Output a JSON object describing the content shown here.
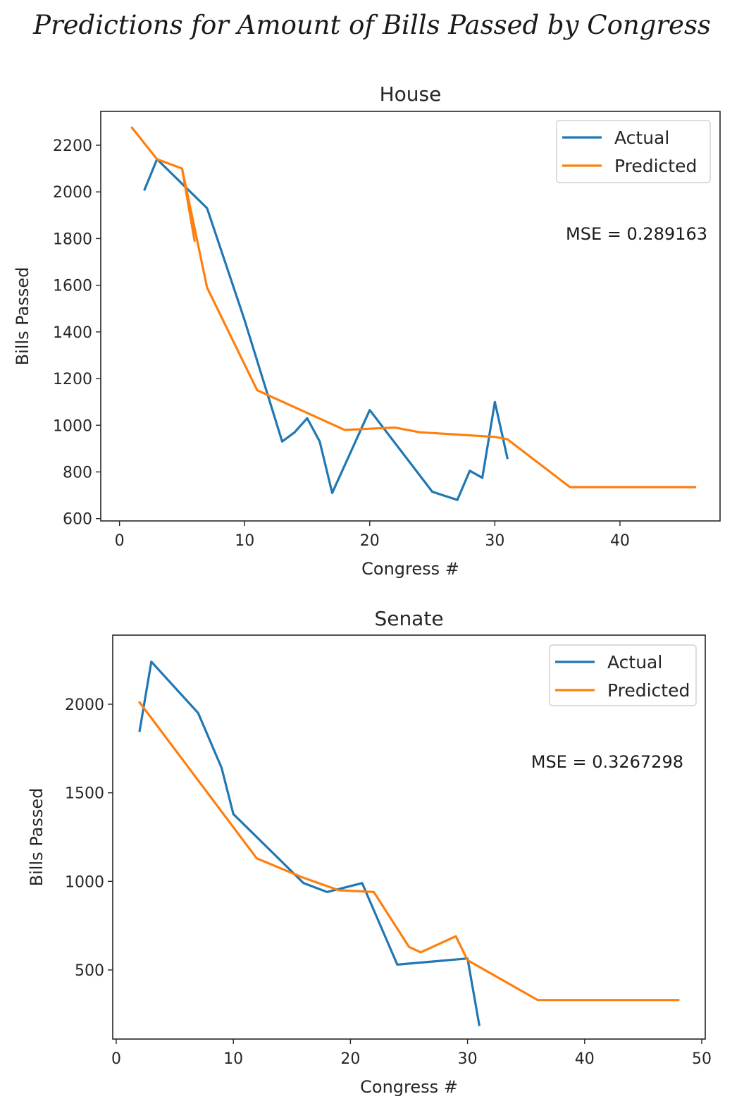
{
  "title": "Predictions for Amount of Bills Passed by Congress",
  "colors": {
    "actual": "#1f77b4",
    "predicted": "#ff7f0e"
  },
  "chart_data": [
    {
      "type": "line",
      "title": "House",
      "xlabel": "Congress #",
      "ylabel": "Bills Passed",
      "xlim": [
        -1.5,
        48
      ],
      "ylim": [
        590,
        2345
      ],
      "xticks": [
        0,
        10,
        20,
        30,
        40
      ],
      "yticks": [
        600,
        800,
        1000,
        1200,
        1400,
        1600,
        1800,
        2000,
        2200
      ],
      "grid": false,
      "legend": "top-right",
      "annotation": "MSE = 0.289163",
      "series": [
        {
          "name": "Actual",
          "color": "#1f77b4",
          "x": [
            2,
            3,
            7,
            10,
            13,
            14,
            15,
            16,
            17,
            20,
            25,
            27,
            28,
            29,
            30,
            31
          ],
          "y": [
            2010,
            2140,
            1930,
            1450,
            930,
            970,
            1030,
            930,
            710,
            1065,
            715,
            680,
            805,
            775,
            1100,
            860
          ]
        },
        {
          "name": "Predicted",
          "color": "#ff7f0e",
          "x": [
            1,
            3,
            5,
            6,
            5,
            7,
            11,
            18,
            20,
            22,
            24,
            30,
            31,
            36,
            46
          ],
          "y": [
            2275,
            2140,
            2100,
            1790,
            2100,
            1590,
            1150,
            980,
            985,
            990,
            970,
            950,
            940,
            735,
            735
          ]
        }
      ]
    },
    {
      "type": "line",
      "title": "Senate",
      "xlabel": "Congress #",
      "ylabel": "Bills Passed",
      "xlim": [
        -0.3,
        50.3
      ],
      "ylim": [
        110,
        2390
      ],
      "xticks": [
        0,
        10,
        20,
        30,
        40,
        50
      ],
      "yticks": [
        500,
        1000,
        1500,
        2000
      ],
      "grid": false,
      "legend": "top-right",
      "annotation": "MSE = 0.3267298",
      "series": [
        {
          "name": "Actual",
          "color": "#1f77b4",
          "x": [
            2,
            3,
            7,
            9,
            10,
            16,
            18,
            21,
            24,
            30,
            31
          ],
          "y": [
            1850,
            2240,
            1950,
            1640,
            1380,
            990,
            940,
            990,
            530,
            565,
            190
          ]
        },
        {
          "name": "Predicted",
          "color": "#ff7f0e",
          "x": [
            2,
            12,
            16,
            19,
            22,
            25,
            26,
            29,
            30,
            36,
            48
          ],
          "y": [
            2010,
            1130,
            1020,
            950,
            940,
            630,
            600,
            690,
            555,
            330,
            330
          ]
        }
      ]
    }
  ]
}
